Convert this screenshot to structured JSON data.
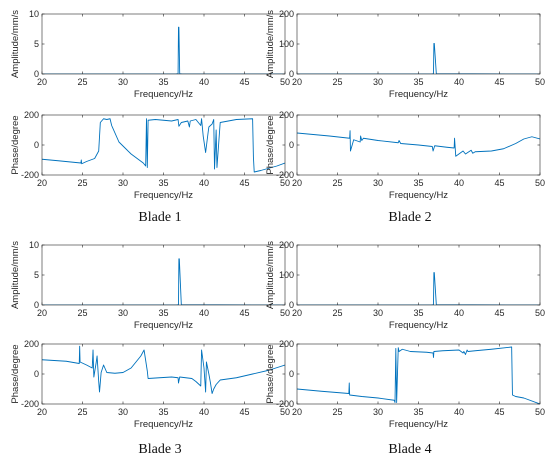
{
  "style": {
    "line_color": "#0072BD",
    "axis_color": "#262626"
  },
  "chart_data": [
    {
      "id": "b1-amp",
      "type": "line",
      "panel": "Blade 1 amplitude",
      "xlabel": "Frequency/Hz",
      "ylabel": "Amplitude/mm/s",
      "xlim": [
        20,
        50
      ],
      "ylim": [
        0,
        10
      ],
      "xticks": [
        20,
        25,
        30,
        35,
        40,
        45,
        50
      ],
      "yticks": [
        0,
        5,
        10
      ],
      "x": [
        20,
        36.5,
        36.8,
        36.85,
        36.9,
        37.0,
        37.3,
        50
      ],
      "y": [
        0,
        0,
        0.05,
        7.8,
        7.8,
        0.05,
        0,
        0
      ]
    },
    {
      "id": "b1-phase",
      "type": "line",
      "panel": "Blade 1 phase",
      "xlabel": "Frequency/Hz",
      "ylabel": "Phase/degree",
      "xlim": [
        20,
        50
      ],
      "ylim": [
        -200,
        200
      ],
      "xticks": [
        20,
        25,
        30,
        35,
        40,
        45,
        50
      ],
      "yticks": [
        -200,
        0,
        200
      ],
      "x": [
        20,
        22,
        24.8,
        24.85,
        24.9,
        25.5,
        26.5,
        27.0,
        27.2,
        27.6,
        28.0,
        28.4,
        28.6,
        29.5,
        31.0,
        32.5,
        32.8,
        32.9,
        33.0,
        33.1,
        34.0,
        36.0,
        36.8,
        36.9,
        37.2,
        38.0,
        38.2,
        38.3,
        39.0,
        39.6,
        39.7,
        39.9,
        40.2,
        40.5,
        40.6,
        41.0,
        41.2,
        41.3,
        41.5,
        41.6,
        42.0,
        44.0,
        46.0,
        46.1,
        46.2,
        47.0,
        48.0,
        49.0,
        50.0
      ],
      "y": [
        -95,
        -105,
        -120,
        -100,
        -125,
        -110,
        -90,
        -40,
        150,
        175,
        170,
        175,
        130,
        20,
        -60,
        -120,
        -140,
        175,
        -150,
        165,
        170,
        160,
        170,
        125,
        150,
        160,
        120,
        160,
        170,
        130,
        175,
        60,
        -50,
        80,
        120,
        140,
        170,
        -160,
        100,
        -150,
        150,
        170,
        175,
        -80,
        -180,
        -170,
        -155,
        -140,
        -120
      ]
    },
    {
      "id": "b2-amp",
      "type": "line",
      "panel": "Blade 2 amplitude",
      "xlabel": "Frequency/Hz",
      "ylabel": "Amplitude/mm/s",
      "xlim": [
        20,
        50
      ],
      "ylim": [
        0,
        200
      ],
      "xticks": [
        20,
        25,
        30,
        35,
        40,
        45,
        50
      ],
      "yticks": [
        0,
        100,
        200
      ],
      "x": [
        20,
        36.6,
        36.85,
        36.9,
        36.95,
        37.2,
        50
      ],
      "y": [
        0,
        0,
        1,
        102,
        102,
        1,
        0
      ]
    },
    {
      "id": "b2-phase",
      "type": "line",
      "panel": "Blade 2 phase",
      "xlabel": "Frequency/Hz",
      "ylabel": "Phase/degree",
      "xlim": [
        20,
        50
      ],
      "ylim": [
        -200,
        200
      ],
      "xticks": [
        20,
        25,
        30,
        35,
        40,
        45,
        50
      ],
      "yticks": [
        -200,
        0,
        200
      ],
      "x": [
        20,
        24,
        26.5,
        26.55,
        26.6,
        27.0,
        27.8,
        27.85,
        28.0,
        28.2,
        30.0,
        32.5,
        32.6,
        32.8,
        35.0,
        36.7,
        36.8,
        37.0,
        38.5,
        39.4,
        39.45,
        39.6,
        40.5,
        40.8,
        41.5,
        41.7,
        42.0,
        44.0,
        45.5,
        47.0,
        48.0,
        49.0,
        50.0
      ],
      "y": [
        80,
        60,
        45,
        95,
        -40,
        35,
        20,
        60,
        30,
        45,
        30,
        15,
        30,
        10,
        0,
        -10,
        -40,
        -5,
        -15,
        -20,
        45,
        -75,
        -40,
        -60,
        -35,
        -55,
        -45,
        -40,
        -25,
        10,
        40,
        55,
        40
      ]
    },
    {
      "id": "b3-amp",
      "type": "line",
      "panel": "Blade 3 amplitude",
      "xlabel": "Frequency/Hz",
      "ylabel": "Amplitude/mm/s",
      "xlim": [
        20,
        50
      ],
      "ylim": [
        0,
        10
      ],
      "xticks": [
        20,
        25,
        30,
        35,
        40,
        45,
        50
      ],
      "yticks": [
        0,
        5,
        10
      ],
      "x": [
        20,
        36.6,
        36.85,
        36.9,
        36.95,
        37.2,
        50
      ],
      "y": [
        0,
        0,
        0.05,
        7.7,
        7.7,
        0.05,
        0
      ]
    },
    {
      "id": "b3-phase",
      "type": "line",
      "panel": "Blade 3 phase",
      "xlabel": "Frequency/Hz",
      "ylabel": "Phase/degree",
      "xlim": [
        20,
        50
      ],
      "ylim": [
        -200,
        200
      ],
      "xticks": [
        20,
        25,
        30,
        35,
        40,
        45,
        50
      ],
      "yticks": [
        -200,
        0,
        200
      ],
      "x": [
        20,
        23,
        24.6,
        24.65,
        24.7,
        25.5,
        26.2,
        26.3,
        26.4,
        26.7,
        26.8,
        27.0,
        27.1,
        27.3,
        27.6,
        28.0,
        29.0,
        30.0,
        31.0,
        32.2,
        32.6,
        33.0,
        33.1,
        34.5,
        36.0,
        36.8,
        36.85,
        37.0,
        38.5,
        39.0,
        39.6,
        39.7,
        40.0,
        40.2,
        40.3,
        40.6,
        40.8,
        41.0,
        41.2,
        41.5,
        42.0,
        44.0,
        46.0,
        48.0,
        50.0
      ],
      "y": [
        95,
        85,
        70,
        185,
        80,
        60,
        40,
        160,
        -20,
        80,
        120,
        -50,
        -120,
        10,
        60,
        10,
        5,
        10,
        40,
        120,
        160,
        20,
        -30,
        -25,
        -20,
        -25,
        -60,
        -20,
        -30,
        -50,
        -80,
        160,
        40,
        -120,
        80,
        0,
        -60,
        -130,
        -100,
        -70,
        -40,
        -25,
        0,
        25,
        60
      ]
    },
    {
      "id": "b4-amp",
      "type": "line",
      "panel": "Blade 4 amplitude",
      "xlabel": "Frequency/Hz",
      "ylabel": "Amplitude/mm/s",
      "xlim": [
        20,
        50
      ],
      "ylim": [
        0,
        200
      ],
      "xticks": [
        20,
        25,
        30,
        35,
        40,
        45,
        50
      ],
      "yticks": [
        0,
        100,
        200
      ],
      "x": [
        20,
        36.6,
        36.85,
        36.9,
        36.95,
        37.2,
        50
      ],
      "y": [
        0,
        0,
        1,
        108,
        108,
        1,
        0
      ]
    },
    {
      "id": "b4-phase",
      "type": "line",
      "panel": "Blade 4 phase",
      "xlabel": "Frequency/Hz",
      "ylabel": "Phase/degree",
      "xlim": [
        20,
        50
      ],
      "ylim": [
        -200,
        200
      ],
      "xticks": [
        20,
        25,
        30,
        35,
        40,
        45,
        50
      ],
      "yticks": [
        -200,
        0,
        200
      ],
      "x": [
        20,
        23,
        26.4,
        26.45,
        26.5,
        28.0,
        30.0,
        32.0,
        32.1,
        32.2,
        32.3,
        32.5,
        32.6,
        33.0,
        34.0,
        36.0,
        36.8,
        36.85,
        36.9,
        38.0,
        40.0,
        40.5,
        40.6,
        40.8,
        41.0,
        41.1,
        42.0,
        44.0,
        46.5,
        46.6,
        47.0,
        48.0,
        50.0
      ],
      "y": [
        -100,
        -115,
        -130,
        -60,
        -140,
        -150,
        -160,
        -175,
        -190,
        170,
        -190,
        175,
        150,
        165,
        150,
        145,
        140,
        110,
        150,
        155,
        160,
        140,
        150,
        130,
        160,
        150,
        155,
        165,
        180,
        -140,
        -150,
        -160,
        -200
      ]
    }
  ],
  "captions": {
    "b1": "Blade 1",
    "b2": "Blade 2",
    "b3": "Blade 3",
    "b4": "Blade 4"
  }
}
